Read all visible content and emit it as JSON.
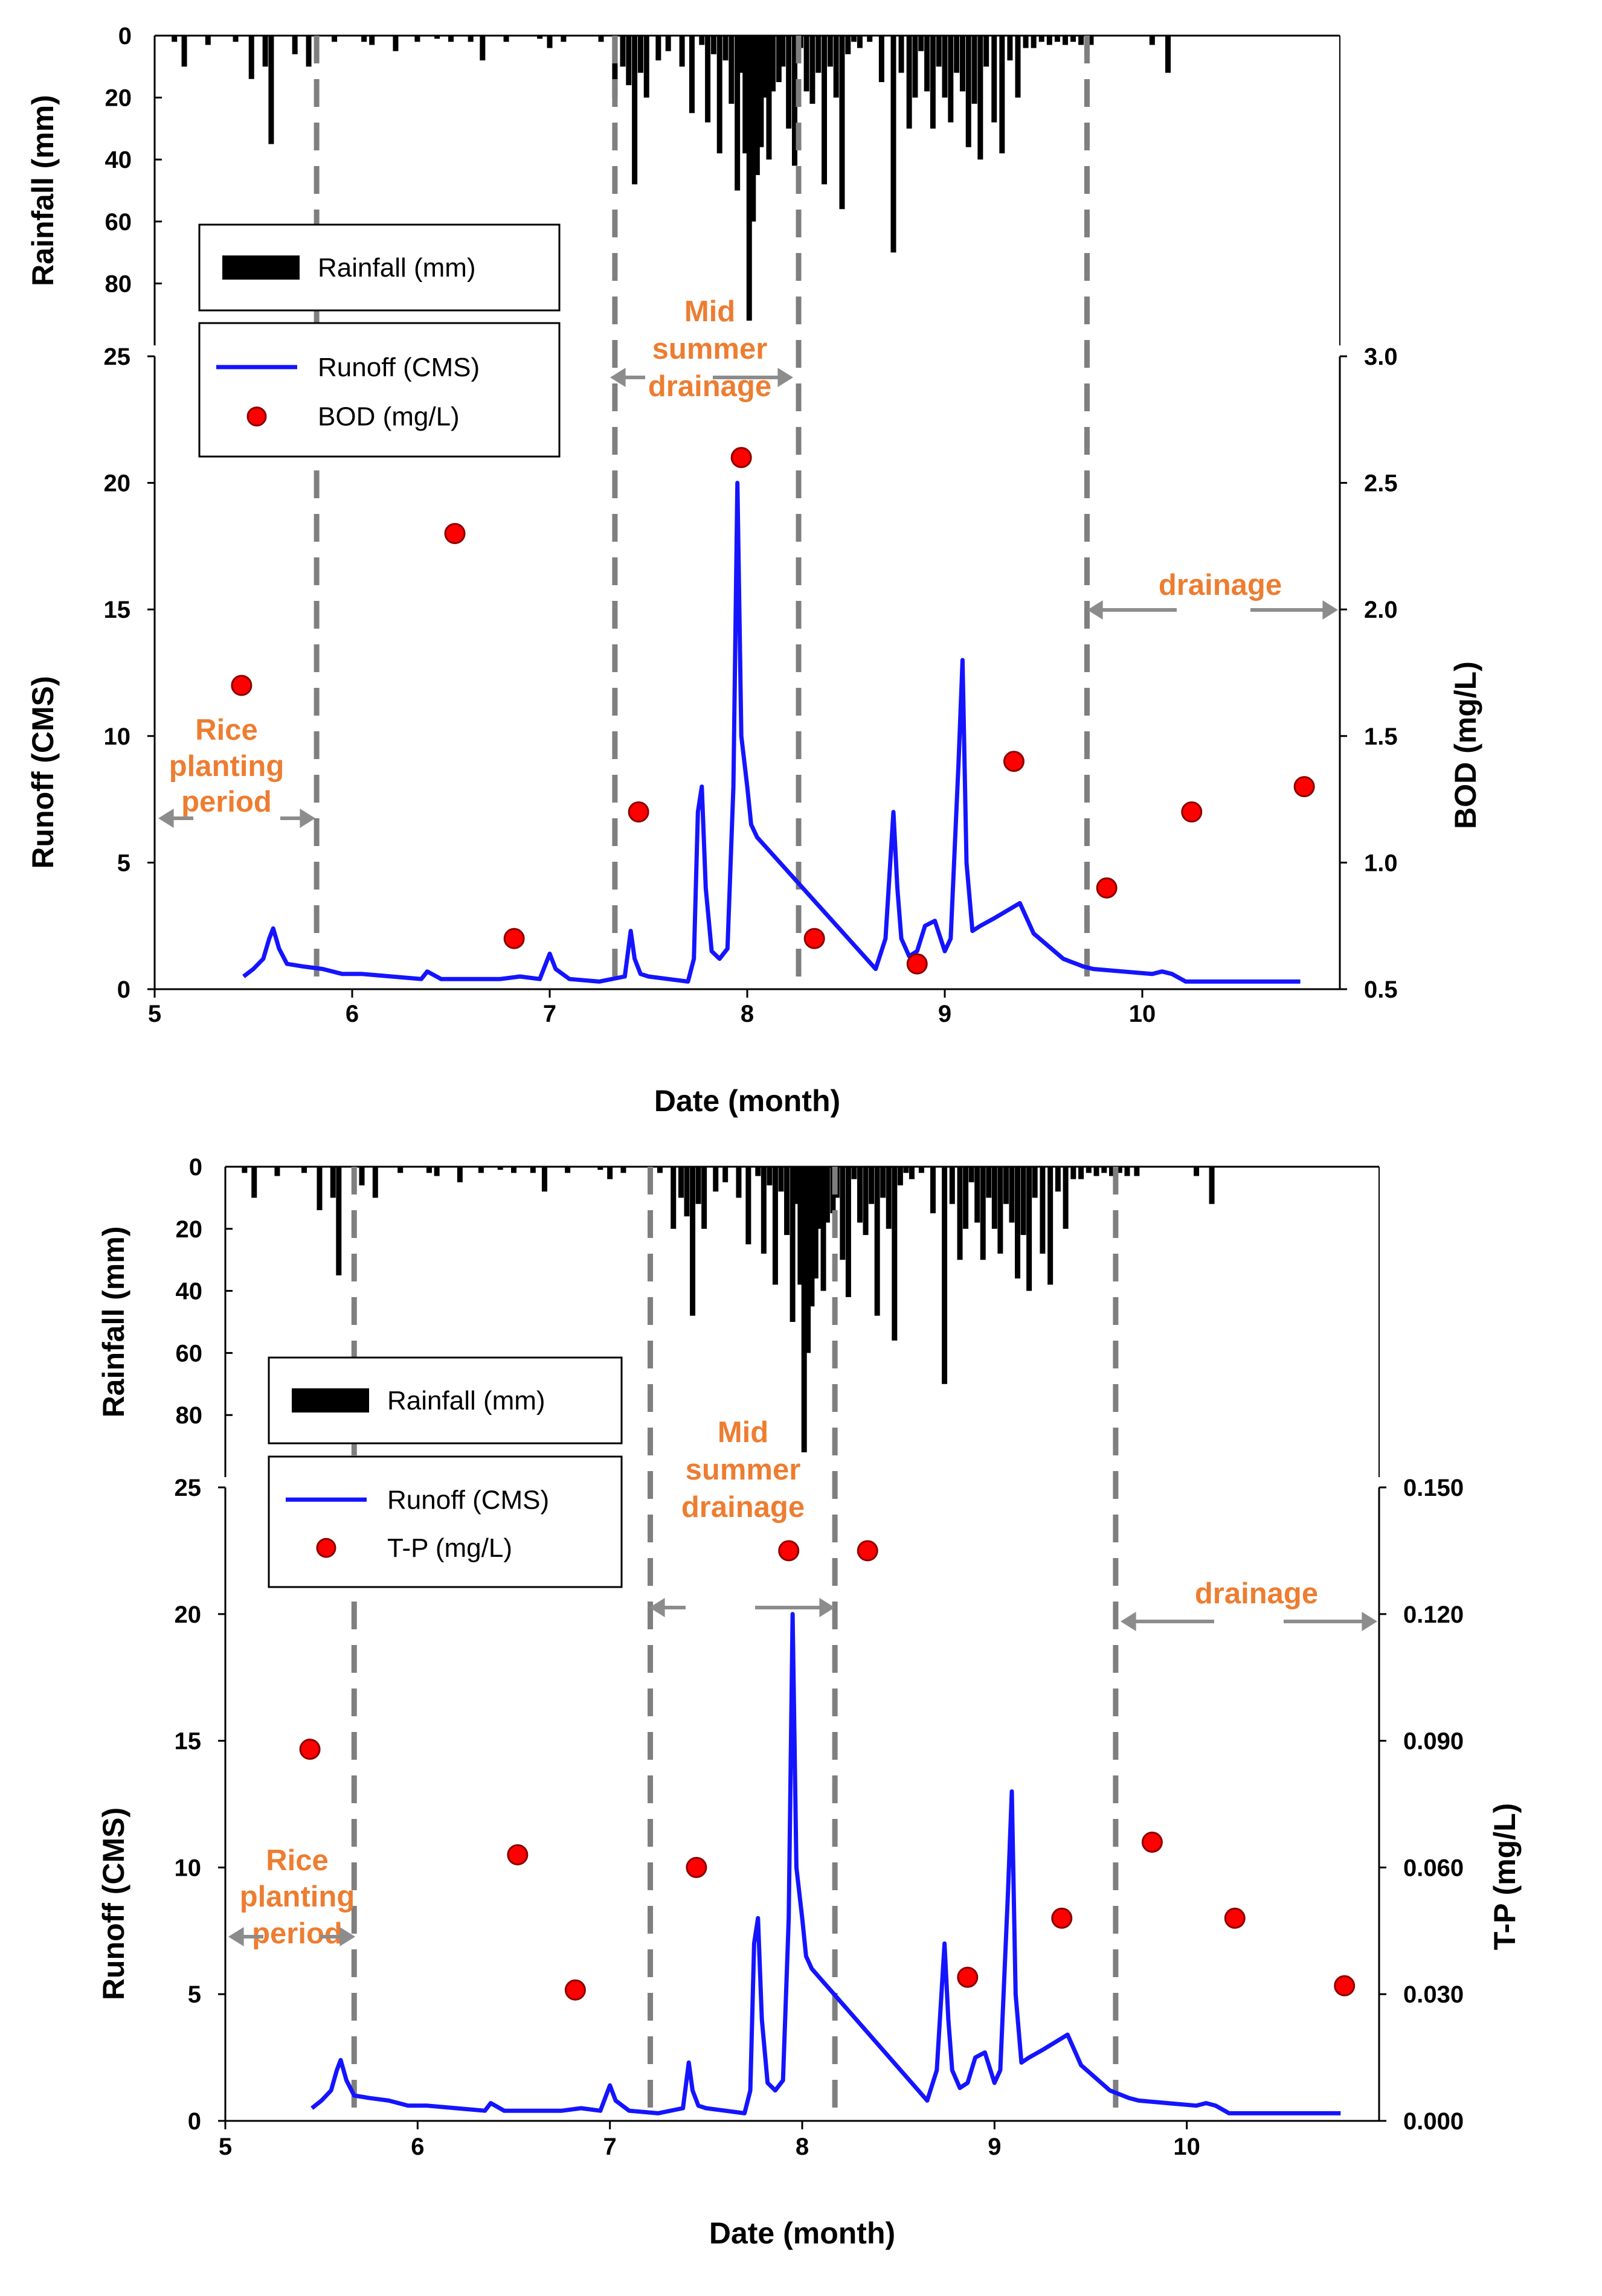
{
  "colors": {
    "runoff": "#1414ff",
    "point": "#ff0000",
    "point_stroke": "#8a0000",
    "rain": "#000000",
    "dash": "#7f7f7f",
    "annotation": "#ed7d31",
    "arrow": "#8c8c8c"
  },
  "chart_data": [
    {
      "type": "line",
      "panel": "top",
      "xlabel": "Date (month)",
      "x_ticks": [
        "5",
        "6",
        "7",
        "8",
        "9",
        "10"
      ],
      "xlim": [
        5,
        11
      ],
      "rain_axis": {
        "label": "Rainfall (mm)",
        "ticks": [
          "0",
          "20",
          "40",
          "60",
          "80"
        ],
        "range": [
          0,
          100
        ],
        "inverted": true
      },
      "left_axis": {
        "label": "Runoff (CMS)",
        "ticks": [
          "0",
          "5",
          "10",
          "15",
          "20",
          "25"
        ],
        "range": [
          0,
          25
        ]
      },
      "right_axis": {
        "label": "BOD (mg/L)",
        "ticks": [
          "0.5",
          "1.0",
          "1.5",
          "2.0",
          "2.5",
          "3.0"
        ],
        "range": [
          0.5,
          3.0
        ]
      },
      "legend": {
        "rain": "Rainfall (mm)",
        "runoff": "Runoff (CMS)",
        "points": "BOD (mg/L)"
      },
      "annotations": {
        "planting": [
          "Rice",
          "planting",
          "period"
        ],
        "midsummer": [
          "Mid",
          "summer",
          "drainage"
        ],
        "drainage": "drainage"
      },
      "dividers_x": [
        5.82,
        7.33,
        8.26,
        9.72
      ],
      "rainfall": {
        "x": [
          5.1,
          5.15,
          5.27,
          5.41,
          5.49,
          5.56,
          5.59,
          5.71,
          5.78,
          5.91,
          6.06,
          6.1,
          6.22,
          6.33,
          6.43,
          6.5,
          6.6,
          6.66,
          6.78,
          6.95,
          7.0,
          7.07,
          7.26,
          7.33,
          7.37,
          7.4,
          7.43,
          7.46,
          7.49,
          7.55,
          7.6,
          7.67,
          7.72,
          7.77,
          7.8,
          7.83,
          7.86,
          7.89,
          7.92,
          7.95,
          7.97,
          7.99,
          8.01,
          8.03,
          8.05,
          8.07,
          8.09,
          8.11,
          8.13,
          8.16,
          8.18,
          8.21,
          8.24,
          8.27,
          8.3,
          8.33,
          8.36,
          8.39,
          8.42,
          8.45,
          8.48,
          8.51,
          8.54,
          8.57,
          8.62,
          8.68,
          8.74,
          8.78,
          8.82,
          8.85,
          8.88,
          8.91,
          8.94,
          8.97,
          9.0,
          9.03,
          9.06,
          9.09,
          9.12,
          9.15,
          9.18,
          9.21,
          9.25,
          9.29,
          9.33,
          9.37,
          9.41,
          9.45,
          9.49,
          9.53,
          9.57,
          9.61,
          9.65,
          9.69,
          9.74,
          10.05,
          10.13
        ],
        "mm": [
          2,
          10,
          3,
          2,
          14,
          10,
          35,
          6,
          10,
          2,
          2,
          3,
          5,
          2,
          1,
          2,
          2,
          8,
          2,
          1,
          4,
          2,
          2,
          20,
          10,
          16,
          48,
          12,
          20,
          8,
          5,
          10,
          25,
          3,
          28,
          6,
          38,
          8,
          22,
          50,
          12,
          38,
          92,
          60,
          45,
          36,
          20,
          40,
          18,
          15,
          10,
          30,
          42,
          4,
          18,
          22,
          12,
          48,
          10,
          20,
          56,
          6,
          2,
          4,
          2,
          15,
          70,
          12,
          30,
          20,
          5,
          18,
          30,
          10,
          20,
          28,
          12,
          18,
          36,
          22,
          40,
          10,
          28,
          38,
          8,
          20,
          4,
          4,
          2,
          3,
          2,
          3,
          2,
          3,
          3,
          3,
          12
        ]
      },
      "runoff": {
        "x": [
          5.45,
          5.5,
          5.55,
          5.58,
          5.6,
          5.63,
          5.67,
          5.75,
          5.85,
          5.95,
          6.05,
          6.2,
          6.35,
          6.38,
          6.45,
          6.6,
          6.75,
          6.85,
          6.95,
          7.0,
          7.03,
          7.1,
          7.25,
          7.38,
          7.41,
          7.43,
          7.46,
          7.5,
          7.6,
          7.7,
          7.73,
          7.75,
          7.77,
          7.79,
          7.82,
          7.86,
          7.9,
          7.93,
          7.95,
          7.97,
          8.0,
          8.02,
          8.05,
          8.65,
          8.7,
          8.74,
          8.76,
          8.78,
          8.82,
          8.86,
          8.9,
          8.95,
          9.0,
          9.03,
          9.07,
          9.09,
          9.11,
          9.14,
          9.18,
          9.25,
          9.38,
          9.45,
          9.6,
          9.7,
          9.75,
          9.9,
          10.05,
          10.1,
          10.15,
          10.22,
          10.4,
          10.6,
          10.8
        ],
        "values": [
          0.5,
          0.8,
          1.2,
          2.0,
          2.4,
          1.6,
          1.0,
          0.9,
          0.8,
          0.6,
          0.6,
          0.5,
          0.4,
          0.7,
          0.4,
          0.4,
          0.4,
          0.5,
          0.4,
          1.4,
          0.8,
          0.4,
          0.3,
          0.5,
          2.3,
          1.2,
          0.6,
          0.5,
          0.4,
          0.3,
          1.2,
          7.0,
          8.0,
          4.0,
          1.5,
          1.2,
          1.6,
          8.0,
          20.0,
          10.0,
          8.0,
          6.5,
          6.0,
          0.8,
          2.0,
          7.0,
          4.0,
          2.0,
          1.3,
          1.5,
          2.5,
          2.7,
          1.5,
          2.0,
          9.0,
          13.0,
          5.0,
          2.3,
          2.5,
          2.8,
          3.4,
          2.2,
          1.2,
          0.9,
          0.8,
          0.7,
          0.6,
          0.7,
          0.6,
          0.3,
          0.3,
          0.3,
          0.3
        ]
      },
      "points": {
        "x": [
          5.44,
          6.52,
          6.82,
          7.45,
          7.97,
          8.34,
          8.86,
          9.35,
          9.82,
          10.25,
          10.82
        ],
        "values": [
          1.7,
          2.3,
          0.7,
          1.2,
          2.6,
          0.7,
          0.6,
          1.4,
          0.9,
          1.2,
          1.3
        ]
      }
    },
    {
      "type": "line",
      "panel": "bottom",
      "xlabel": "Date (month)",
      "x_ticks": [
        "5",
        "6",
        "7",
        "8",
        "9",
        "10"
      ],
      "xlim": [
        5,
        11
      ],
      "rain_axis": {
        "label": "Rainfall (mm)",
        "ticks": [
          "0",
          "20",
          "40",
          "60",
          "80"
        ],
        "range": [
          0,
          100
        ],
        "inverted": true
      },
      "left_axis": {
        "label": "Runoff (CMS)",
        "ticks": [
          "0",
          "5",
          "10",
          "15",
          "20",
          "25"
        ],
        "range": [
          0,
          25
        ]
      },
      "right_axis": {
        "label": "T-P (mg/L)",
        "ticks": [
          "0.000",
          "0.030",
          "0.060",
          "0.090",
          "0.120",
          "0.150"
        ],
        "range": [
          0,
          0.15
        ]
      },
      "legend": {
        "rain": "Rainfall (mm)",
        "runoff": "Runoff (CMS)",
        "points": "T-P (mg/L)"
      },
      "annotations": {
        "planting": [
          "Rice",
          "planting",
          "period"
        ],
        "midsummer": [
          "Mid",
          "summer",
          "drainage"
        ],
        "drainage": "drainage"
      },
      "dividers_x": [
        5.67,
        7.21,
        8.17,
        9.63
      ],
      "rainfall": {
        "x": [
          5.1,
          5.15,
          5.27,
          5.41,
          5.49,
          5.56,
          5.59,
          5.71,
          5.78,
          5.91,
          6.06,
          6.1,
          6.22,
          6.33,
          6.43,
          6.5,
          6.6,
          6.66,
          6.78,
          6.95,
          7.0,
          7.07,
          7.26,
          7.33,
          7.37,
          7.4,
          7.43,
          7.46,
          7.49,
          7.55,
          7.6,
          7.67,
          7.72,
          7.77,
          7.8,
          7.83,
          7.86,
          7.89,
          7.92,
          7.95,
          7.97,
          7.99,
          8.01,
          8.03,
          8.05,
          8.07,
          8.09,
          8.11,
          8.13,
          8.16,
          8.18,
          8.21,
          8.24,
          8.27,
          8.3,
          8.33,
          8.36,
          8.39,
          8.42,
          8.45,
          8.48,
          8.51,
          8.54,
          8.57,
          8.62,
          8.68,
          8.74,
          8.78,
          8.82,
          8.85,
          8.88,
          8.91,
          8.94,
          8.97,
          9.0,
          9.03,
          9.06,
          9.09,
          9.12,
          9.15,
          9.18,
          9.21,
          9.25,
          9.29,
          9.33,
          9.37,
          9.41,
          9.45,
          9.49,
          9.53,
          9.57,
          9.61,
          9.65,
          9.69,
          9.74,
          10.05,
          10.13
        ],
        "mm": [
          2,
          10,
          3,
          2,
          14,
          10,
          35,
          6,
          10,
          2,
          2,
          3,
          5,
          2,
          1,
          2,
          2,
          8,
          2,
          1,
          4,
          2,
          2,
          20,
          10,
          16,
          48,
          12,
          20,
          8,
          5,
          10,
          25,
          3,
          28,
          6,
          38,
          8,
          22,
          50,
          12,
          38,
          92,
          60,
          45,
          36,
          20,
          40,
          18,
          15,
          10,
          30,
          42,
          4,
          18,
          22,
          12,
          48,
          10,
          20,
          56,
          6,
          2,
          4,
          2,
          15,
          70,
          12,
          30,
          20,
          5,
          18,
          30,
          10,
          20,
          28,
          12,
          18,
          36,
          22,
          40,
          10,
          28,
          38,
          8,
          20,
          4,
          4,
          2,
          3,
          2,
          3,
          2,
          3,
          3,
          3,
          12
        ]
      },
      "runoff": {
        "x": [
          5.45,
          5.5,
          5.55,
          5.58,
          5.6,
          5.63,
          5.67,
          5.75,
          5.85,
          5.95,
          6.05,
          6.2,
          6.35,
          6.38,
          6.45,
          6.6,
          6.75,
          6.85,
          6.95,
          7.0,
          7.03,
          7.1,
          7.25,
          7.38,
          7.41,
          7.43,
          7.46,
          7.5,
          7.6,
          7.7,
          7.73,
          7.75,
          7.77,
          7.79,
          7.82,
          7.86,
          7.9,
          7.93,
          7.95,
          7.97,
          8.0,
          8.02,
          8.05,
          8.65,
          8.7,
          8.74,
          8.76,
          8.78,
          8.82,
          8.86,
          8.9,
          8.95,
          9.0,
          9.03,
          9.07,
          9.09,
          9.11,
          9.14,
          9.18,
          9.25,
          9.38,
          9.45,
          9.6,
          9.7,
          9.75,
          9.9,
          10.05,
          10.1,
          10.15,
          10.22,
          10.4,
          10.6,
          10.8
        ],
        "values": [
          0.5,
          0.8,
          1.2,
          2.0,
          2.4,
          1.6,
          1.0,
          0.9,
          0.8,
          0.6,
          0.6,
          0.5,
          0.4,
          0.7,
          0.4,
          0.4,
          0.4,
          0.5,
          0.4,
          1.4,
          0.8,
          0.4,
          0.3,
          0.5,
          2.3,
          1.2,
          0.6,
          0.5,
          0.4,
          0.3,
          1.2,
          7.0,
          8.0,
          4.0,
          1.5,
          1.2,
          1.6,
          8.0,
          20.0,
          10.0,
          8.0,
          6.5,
          6.0,
          0.8,
          2.0,
          7.0,
          4.0,
          2.0,
          1.3,
          1.5,
          2.5,
          2.7,
          1.5,
          2.0,
          9.0,
          13.0,
          5.0,
          2.3,
          2.5,
          2.8,
          3.4,
          2.2,
          1.2,
          0.9,
          0.8,
          0.7,
          0.6,
          0.7,
          0.6,
          0.3,
          0.3,
          0.3,
          0.3
        ]
      },
      "points": {
        "x": [
          5.44,
          6.52,
          6.82,
          7.45,
          7.93,
          8.34,
          8.86,
          9.35,
          9.82,
          10.25,
          10.82
        ],
        "values": [
          0.088,
          0.063,
          0.031,
          0.06,
          0.135,
          0.135,
          0.034,
          0.048,
          0.066,
          0.048,
          0.032
        ]
      }
    }
  ]
}
